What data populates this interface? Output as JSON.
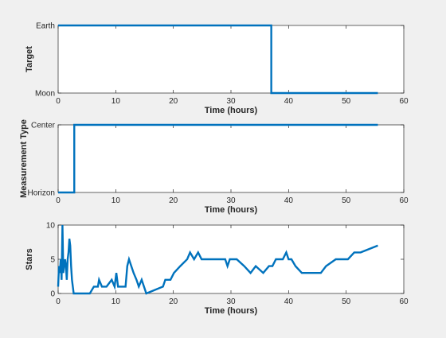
{
  "colors": {
    "series": "#0072bd",
    "figure_bg": "#f0f0f0",
    "axes_bg": "#ffffff"
  },
  "chart_data": [
    {
      "type": "line",
      "xlabel": "Time (hours)",
      "ylabel": "Target",
      "xlim": [
        0,
        60
      ],
      "xticks": [
        0,
        10,
        20,
        30,
        40,
        50,
        60
      ],
      "ylim": [
        0,
        1
      ],
      "yticks": [
        0,
        1
      ],
      "ytick_labels": [
        "Moon",
        "Earth"
      ],
      "grid": true,
      "series": [
        {
          "x": [
            0,
            37,
            37,
            55.5
          ],
          "y": [
            1,
            1,
            0,
            0
          ]
        }
      ]
    },
    {
      "type": "line",
      "xlabel": "Time (hours)",
      "ylabel": "Measurement Type",
      "xlim": [
        0,
        60
      ],
      "xticks": [
        0,
        10,
        20,
        30,
        40,
        50,
        60
      ],
      "ylim": [
        0,
        1
      ],
      "yticks": [
        0,
        1
      ],
      "ytick_labels": [
        "Horizon",
        "Center"
      ],
      "grid": true,
      "series": [
        {
          "x": [
            0,
            2.8,
            2.8,
            55.5
          ],
          "y": [
            0,
            0,
            1,
            1
          ]
        }
      ]
    },
    {
      "type": "line",
      "xlabel": "Time (hours)",
      "ylabel": "Stars",
      "xlim": [
        0,
        60
      ],
      "xticks": [
        0,
        10,
        20,
        30,
        40,
        50,
        60
      ],
      "ylim": [
        0,
        10
      ],
      "yticks": [
        0,
        5,
        10
      ],
      "ytick_labels": [
        "0",
        "5",
        "10"
      ],
      "grid": true,
      "series": [
        {
          "x": [
            0,
            0.15,
            0.3,
            0.45,
            0.6,
            0.75,
            0.9,
            1.05,
            1.2,
            1.35,
            1.5,
            1.65,
            1.8,
            1.95,
            2.1,
            2.25,
            2.4,
            2.55,
            2.7,
            2.85,
            3.0,
            3.3,
            5.5,
            6.2,
            6.9,
            7.1,
            7.6,
            8.4,
            9.3,
            9.8,
            10.1,
            10.4,
            11.0,
            11.7,
            12.0,
            12.3,
            12.7,
            13.1,
            13.6,
            14.0,
            14.5,
            14.9,
            15.3,
            18.2,
            18.6,
            19.5,
            20.1,
            21.2,
            22.4,
            22.9,
            23.6,
            24.3,
            24.9,
            26.5,
            28.0,
            29.0,
            29.4,
            29.8,
            31.0,
            32.3,
            33.4,
            34.3,
            35.6,
            36.6,
            37.2,
            37.8,
            39.0,
            39.6,
            40.0,
            40.5,
            41.2,
            42.3,
            43.2,
            45.6,
            46.5,
            48.2,
            49.3,
            50.3,
            51.4,
            52.5,
            55.5
          ],
          "y": [
            1,
            4,
            3,
            5,
            2,
            10,
            3,
            4,
            5,
            4,
            2,
            5,
            6,
            8,
            7,
            4,
            2,
            1,
            0,
            0,
            0,
            0,
            0,
            1,
            1,
            2,
            1,
            1,
            2,
            1,
            3,
            1,
            1,
            1,
            4,
            5,
            4,
            3,
            2,
            1,
            2,
            1,
            0,
            1,
            2,
            2,
            3,
            4,
            5,
            6,
            5,
            6,
            5,
            5,
            5,
            5,
            4,
            5,
            5,
            4,
            3,
            4,
            3,
            4,
            4,
            5,
            5,
            6,
            5,
            5,
            4,
            3,
            3,
            3,
            4,
            5,
            5,
            5,
            6,
            6,
            7
          ]
        }
      ]
    }
  ]
}
